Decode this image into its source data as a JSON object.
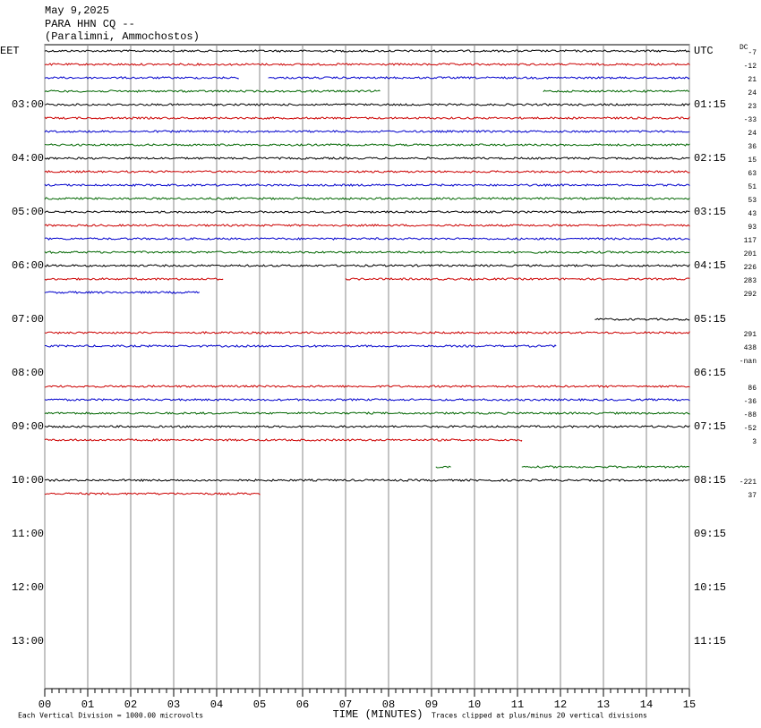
{
  "header": {
    "lines": [
      "May 9,2025",
      "PARA HHN CQ --",
      "(Paralimni, Ammochostos)"
    ]
  },
  "chart_data": {
    "type": "helicorder",
    "dc_title": "DC",
    "xlabel": "TIME (MINUTES)",
    "note_left": "Each Vertical Division = 1000.00 microvolts",
    "note_right": "Traces clipped at plus/minus 20 vertical divisions",
    "xlim": [
      0,
      15
    ],
    "xticks": [
      {
        "value": 0,
        "label": "00"
      },
      {
        "value": 1,
        "label": "01"
      },
      {
        "value": 2,
        "label": "02"
      },
      {
        "value": 3,
        "label": "03"
      },
      {
        "value": 4,
        "label": "04"
      },
      {
        "value": 5,
        "label": "05"
      },
      {
        "value": 6,
        "label": "06"
      },
      {
        "value": 7,
        "label": "07"
      },
      {
        "value": 8,
        "label": "08"
      },
      {
        "value": 9,
        "label": "09"
      },
      {
        "value": 10,
        "label": "10"
      },
      {
        "value": 11,
        "label": "11"
      },
      {
        "value": 12,
        "label": "12"
      },
      {
        "value": 13,
        "label": "13"
      },
      {
        "value": 14,
        "label": "14"
      },
      {
        "value": 15,
        "label": "15"
      }
    ],
    "hour_labels": [
      {
        "eet": "EET",
        "utc": "UTC"
      },
      {
        "eet": "03:00",
        "utc": "01:15"
      },
      {
        "eet": "04:00",
        "utc": "02:15"
      },
      {
        "eet": "05:00",
        "utc": "03:15"
      },
      {
        "eet": "06:00",
        "utc": "04:15"
      },
      {
        "eet": "07:00",
        "utc": "05:15"
      },
      {
        "eet": "08:00",
        "utc": "06:15"
      },
      {
        "eet": "09:00",
        "utc": "07:15"
      },
      {
        "eet": "10:00",
        "utc": "08:15"
      },
      {
        "eet": "11:00",
        "utc": "09:15"
      },
      {
        "eet": "12:00",
        "utc": "10:15"
      },
      {
        "eet": "13:00",
        "utc": "11:15"
      }
    ],
    "traces": [
      {
        "color": "#000000",
        "segments": [
          [
            0,
            15
          ]
        ],
        "dc": -7
      },
      {
        "color": "#cc0000",
        "segments": [
          [
            0,
            15
          ]
        ],
        "dc": -12
      },
      {
        "color": "#0000cc",
        "segments": [
          [
            0,
            4.5
          ],
          [
            5.2,
            15
          ]
        ],
        "dc": 21
      },
      {
        "color": "#006600",
        "segments": [
          [
            0,
            7.8
          ],
          [
            11.6,
            15
          ]
        ],
        "dc": 24
      },
      {
        "color": "#000000",
        "segments": [
          [
            0,
            15
          ]
        ],
        "dc": 23
      },
      {
        "color": "#cc0000",
        "segments": [
          [
            0,
            15
          ]
        ],
        "dc": -33
      },
      {
        "color": "#0000cc",
        "segments": [
          [
            0,
            15
          ]
        ],
        "dc": 24
      },
      {
        "color": "#006600",
        "segments": [
          [
            0,
            15
          ]
        ],
        "dc": 36
      },
      {
        "color": "#000000",
        "segments": [
          [
            0,
            15
          ]
        ],
        "dc": 15
      },
      {
        "color": "#cc0000",
        "segments": [
          [
            0,
            15
          ]
        ],
        "dc": 63
      },
      {
        "color": "#0000cc",
        "segments": [
          [
            0,
            15
          ]
        ],
        "dc": 51
      },
      {
        "color": "#006600",
        "segments": [
          [
            0,
            15
          ]
        ],
        "dc": 53
      },
      {
        "color": "#000000",
        "segments": [
          [
            0,
            15
          ]
        ],
        "dc": 43
      },
      {
        "color": "#cc0000",
        "segments": [
          [
            0,
            15
          ]
        ],
        "dc": 93
      },
      {
        "color": "#0000cc",
        "segments": [
          [
            0,
            15
          ]
        ],
        "dc": 117
      },
      {
        "color": "#006600",
        "segments": [
          [
            0,
            15
          ]
        ],
        "dc": 201
      },
      {
        "color": "#000000",
        "segments": [
          [
            0,
            15
          ]
        ],
        "dc": 226
      },
      {
        "color": "#cc0000",
        "segments": [
          [
            0,
            4.15
          ],
          [
            7.0,
            15
          ]
        ],
        "dc": 283
      },
      {
        "color": "#0000cc",
        "segments": [
          [
            0,
            3.6
          ]
        ],
        "dc": 292
      },
      null,
      {
        "color": "#000000",
        "segments": [
          [
            12.8,
            15
          ]
        ]
      },
      {
        "color": "#cc0000",
        "segments": [
          [
            0,
            15
          ]
        ],
        "dc": 291
      },
      {
        "color": "#0000cc",
        "segments": [
          [
            0,
            11.9
          ]
        ],
        "dc": 438
      },
      {
        "dc": "-nan"
      },
      null,
      {
        "color": "#cc0000",
        "segments": [
          [
            0,
            15
          ]
        ],
        "dc": 86
      },
      {
        "color": "#0000cc",
        "segments": [
          [
            0,
            15
          ]
        ],
        "dc": -36
      },
      {
        "color": "#006600",
        "segments": [
          [
            0,
            15
          ]
        ],
        "dc": -88
      },
      {
        "color": "#000000",
        "segments": [
          [
            0,
            15
          ]
        ],
        "dc": -52
      },
      {
        "color": "#cc0000",
        "segments": [
          [
            0,
            11.1
          ]
        ],
        "dc": 3
      },
      null,
      {
        "color": "#006600",
        "segments": [
          [
            9.1,
            9.45
          ],
          [
            11.1,
            15
          ]
        ]
      },
      {
        "color": "#000000",
        "segments": [
          [
            0,
            15
          ]
        ],
        "dc": -221
      },
      {
        "color": "#cc0000",
        "segments": [
          [
            0,
            5.0
          ]
        ],
        "dc": 37
      }
    ]
  }
}
